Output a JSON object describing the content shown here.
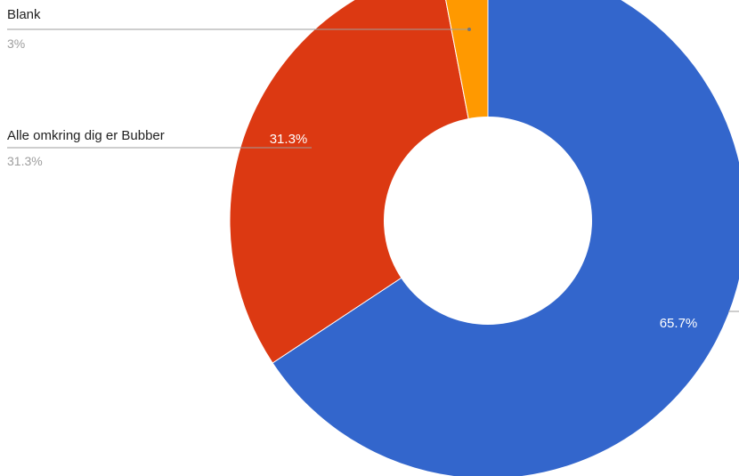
{
  "chart_data": {
    "type": "pie",
    "donut": true,
    "slices": [
      {
        "label": "",
        "value": 65.7,
        "value_label": "65.7%",
        "color": "#3366cc"
      },
      {
        "label": "Alle omkring dig er Bubber",
        "value": 31.3,
        "value_label": "31.3%",
        "color": "#dc3912"
      },
      {
        "label": "Blank",
        "value": 3.0,
        "value_label": "3%",
        "color": "#ff9900"
      }
    ]
  }
}
